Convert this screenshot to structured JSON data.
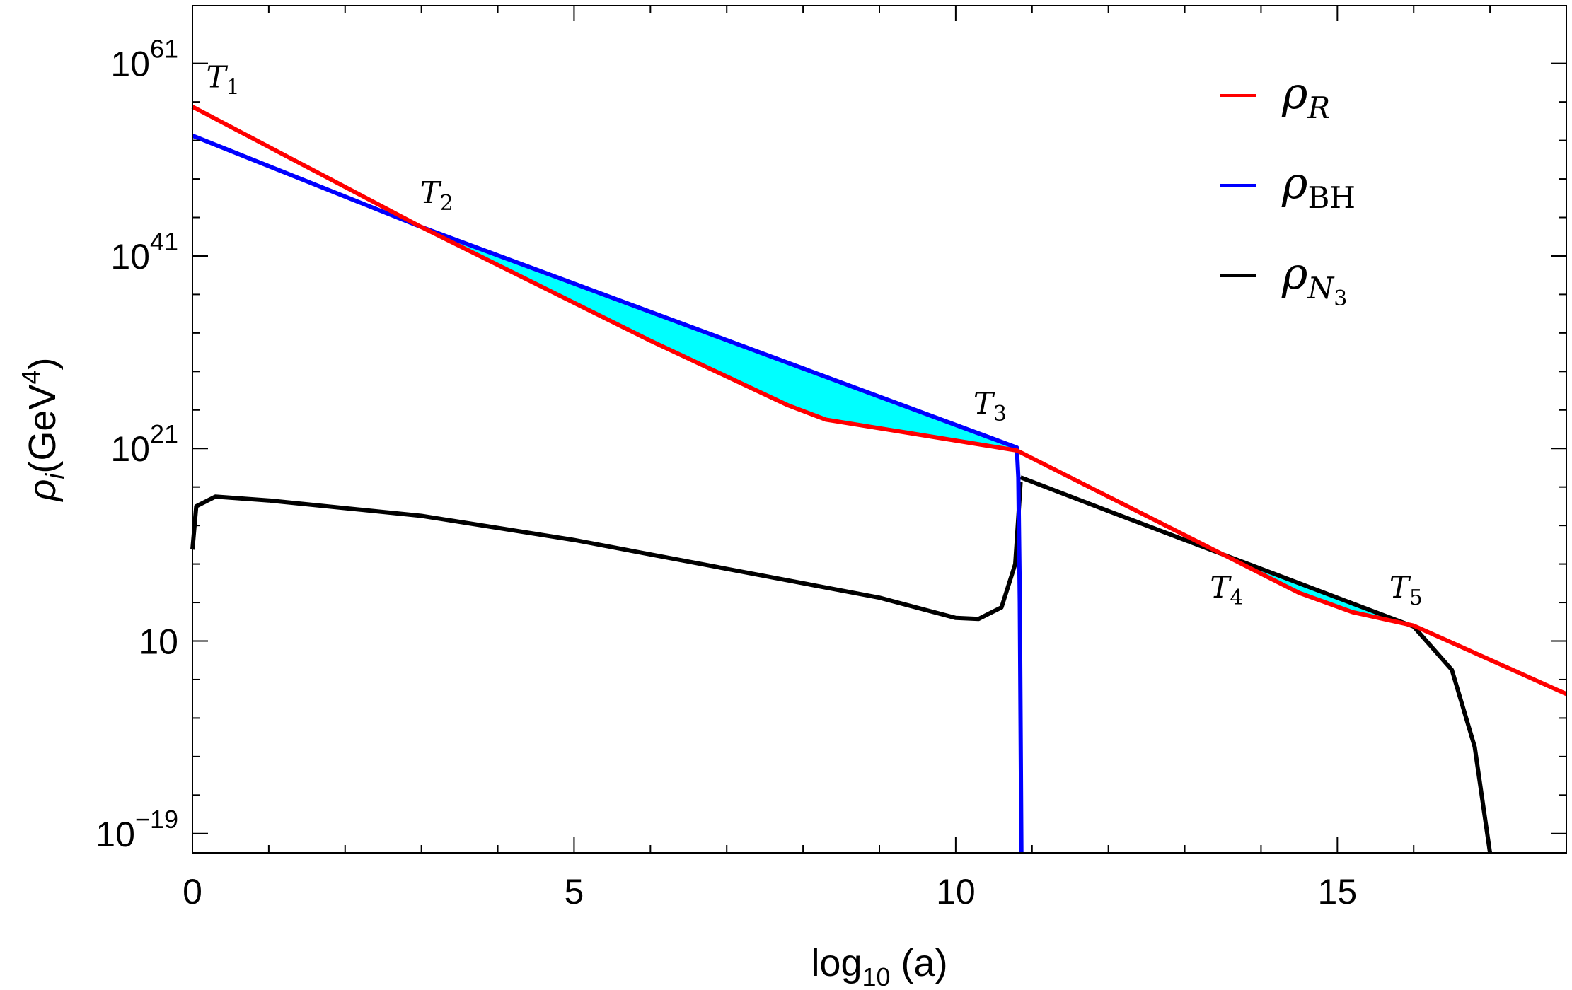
{
  "chart_data": {
    "type": "line",
    "xlabel": "log10 (a)",
    "xlabel_base": "log",
    "xlabel_sub": "10",
    "xlabel_rest": " (a)",
    "ylabel": "ρi(GeV4)",
    "ylabel_rho": "ρ",
    "ylabel_i": "i",
    "ylabel_unit": "(GeV",
    "ylabel_exp": "4",
    "ylabel_close": ")",
    "xlim": [
      0,
      18
    ],
    "ylim_log10": [
      -21,
      67
    ],
    "y_scale": "log",
    "x_ticks": [
      {
        "value": 0,
        "label": "0"
      },
      {
        "value": 5,
        "label": "5"
      },
      {
        "value": 10,
        "label": "10"
      },
      {
        "value": 15,
        "label": "15"
      }
    ],
    "y_ticks": [
      {
        "value": 61,
        "base": "10",
        "exp": "61"
      },
      {
        "value": 41,
        "base": "10",
        "exp": "41"
      },
      {
        "value": 21,
        "base": "10",
        "exp": "21"
      },
      {
        "value": 1,
        "base": "10",
        "exp": ""
      },
      {
        "value": -19,
        "base": "10",
        "exp": "−19"
      }
    ],
    "legend_position": "top-right",
    "series": [
      {
        "name": "ρR",
        "name_main": "ρ",
        "name_sub": "R",
        "color": "#ff0000",
        "x": [
          0.0,
          3.0,
          6.0,
          7.8,
          8.3,
          10.8,
          13.5,
          14.5,
          15.2,
          16.0,
          18.0
        ],
        "log10_y": [
          56.5,
          44.0,
          32.2,
          25.5,
          24.0,
          20.8,
          10.0,
          6.0,
          4.0,
          2.6,
          -4.5
        ]
      },
      {
        "name": "ρBH",
        "name_main": "ρ",
        "name_sub": "BH",
        "color": "#0000ff",
        "x": [
          0.0,
          3.0,
          10.8,
          10.82,
          10.84,
          10.86
        ],
        "log10_y": [
          53.5,
          44.0,
          21.1,
          18.0,
          5.0,
          -21.0
        ]
      },
      {
        "name": "ρN3",
        "name_main": "ρ",
        "name_sub": "N",
        "name_subsub": "3",
        "color": "#000000",
        "x": [
          0.0,
          0.05,
          0.3,
          1.0,
          3.0,
          5.0,
          7.0,
          9.0,
          10.0,
          10.3,
          10.6,
          10.78,
          10.85
        ],
        "log10_y": [
          10.5,
          15.0,
          16.0,
          15.6,
          14.0,
          11.5,
          8.5,
          5.5,
          3.4,
          3.3,
          4.5,
          9.0,
          17.5
        ],
        "x2": [
          10.85,
          12.0,
          13.5,
          14.5,
          15.5,
          16.0,
          16.5,
          16.8,
          17.0
        ],
        "log10_y2": [
          18.0,
          14.5,
          10.0,
          7.0,
          4.0,
          2.5,
          -2.0,
          -10.0,
          -21.0
        ]
      }
    ],
    "shaded_regions": [
      {
        "color": "#00ffff",
        "between": [
          "ρBH",
          "ρR"
        ],
        "x_range": [
          3.0,
          10.8
        ]
      },
      {
        "color": "#00ffff",
        "between": [
          "ρN3",
          "ρR"
        ],
        "x_range": [
          13.5,
          16.0
        ]
      }
    ],
    "annotations": [
      {
        "main": "T",
        "sub": "1",
        "x": 0.4,
        "log10_y": 58.5
      },
      {
        "main": "T",
        "sub": "2",
        "x": 3.2,
        "log10_y": 46.5
      },
      {
        "main": "T",
        "sub": "3",
        "x": 10.45,
        "log10_y": 24.6
      },
      {
        "main": "T",
        "sub": "4",
        "x": 13.55,
        "log10_y": 5.5
      },
      {
        "main": "T",
        "sub": "5",
        "x": 15.9,
        "log10_y": 5.5
      }
    ]
  }
}
